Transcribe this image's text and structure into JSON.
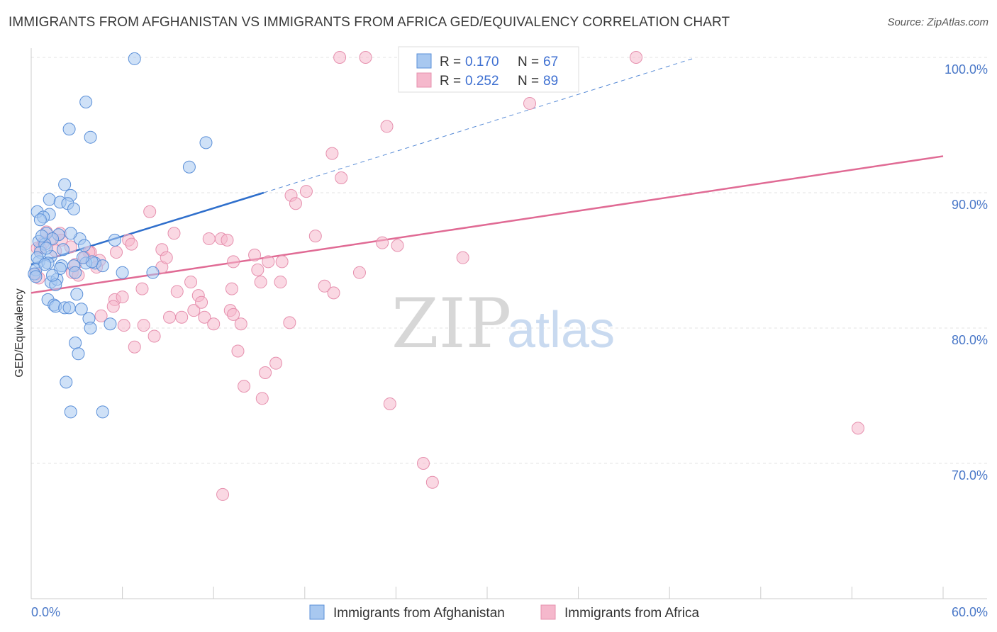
{
  "header": {
    "title": "IMMIGRANTS FROM AFGHANISTAN VS IMMIGRANTS FROM AFRICA GED/EQUIVALENCY CORRELATION CHART",
    "source": "Source: ZipAtlas.com"
  },
  "watermark": {
    "zip": "ZIP",
    "atlas": "atlas"
  },
  "colors": {
    "afghanistan_fill": "#a8c8f0",
    "afghanistan_stroke": "#5a8fd8",
    "afghanistan_line": "#2f6fcc",
    "africa_fill": "#f5b8cc",
    "africa_stroke": "#e690ae",
    "africa_line": "#e06a94",
    "tick_text": "#4a78c8",
    "grid": "#e3e3e3"
  },
  "legend": {
    "r_label": "R =",
    "n_label": "N =",
    "afghanistan": {
      "r": "0.170",
      "n": "67"
    },
    "africa": {
      "r": "0.252",
      "n": "89"
    }
  },
  "chart_data": {
    "type": "scatter",
    "title": "IMMIGRANTS FROM AFGHANISTAN VS IMMIGRANTS FROM AFRICA GED/EQUIVALENCY CORRELATION CHART",
    "xlabel": "",
    "ylabel": "GED/Equivalency",
    "xlim": [
      0,
      60
    ],
    "ylim": [
      60,
      101.5
    ],
    "x_tick_labels": [
      "0.0%",
      "60.0%"
    ],
    "y_ticks": [
      100,
      90,
      80,
      70
    ],
    "y_tick_labels": [
      "100.0%",
      "90.0%",
      "80.0%",
      "70.0%"
    ],
    "grid": true,
    "legend_position": "top-center",
    "series": [
      {
        "name": "Immigrants from Afghanistan",
        "r": 0.17,
        "n": 67,
        "trend": {
          "x": [
            0,
            15.3
          ],
          "y": [
            84.7,
            90.0
          ]
        },
        "trend_extended": {
          "x": [
            15.3,
            43.5
          ],
          "y": [
            90.0,
            99.9
          ]
        },
        "points": [
          [
            6.8,
            99.9
          ],
          [
            3.6,
            96.7
          ],
          [
            2.5,
            94.7
          ],
          [
            3.9,
            94.1
          ],
          [
            11.5,
            93.7
          ],
          [
            10.4,
            91.9
          ],
          [
            2.2,
            90.6
          ],
          [
            1.2,
            89.5
          ],
          [
            2.6,
            89.8
          ],
          [
            1.9,
            89.3
          ],
          [
            2.4,
            89.2
          ],
          [
            2.8,
            88.8
          ],
          [
            0.4,
            88.6
          ],
          [
            1.2,
            88.4
          ],
          [
            0.8,
            88.2
          ],
          [
            0.6,
            88.0
          ],
          [
            1.0,
            87.0
          ],
          [
            1.8,
            86.9
          ],
          [
            0.5,
            86.4
          ],
          [
            1.4,
            86.6
          ],
          [
            3.2,
            86.6
          ],
          [
            5.5,
            86.5
          ],
          [
            0.9,
            86.2
          ],
          [
            3.5,
            86.1
          ],
          [
            0.6,
            85.6
          ],
          [
            1.3,
            85.3
          ],
          [
            0.5,
            84.9
          ],
          [
            1.1,
            84.8
          ],
          [
            2.0,
            84.6
          ],
          [
            2.8,
            84.6
          ],
          [
            4.2,
            84.8
          ],
          [
            4.7,
            84.6
          ],
          [
            3.6,
            84.8
          ],
          [
            0.3,
            84.3
          ],
          [
            2.9,
            84.1
          ],
          [
            6.0,
            84.1
          ],
          [
            8.0,
            84.1
          ],
          [
            1.3,
            83.4
          ],
          [
            1.7,
            83.6
          ],
          [
            1.6,
            83.2
          ],
          [
            3.0,
            82.5
          ],
          [
            1.1,
            82.1
          ],
          [
            1.5,
            81.7
          ],
          [
            1.6,
            81.6
          ],
          [
            2.2,
            81.5
          ],
          [
            2.5,
            81.5
          ],
          [
            3.3,
            81.4
          ],
          [
            3.8,
            80.7
          ],
          [
            5.2,
            80.3
          ],
          [
            3.9,
            80.0
          ],
          [
            2.9,
            78.9
          ],
          [
            3.1,
            78.1
          ],
          [
            2.3,
            76.0
          ],
          [
            2.6,
            73.8
          ],
          [
            4.7,
            73.8
          ],
          [
            0.2,
            84.0
          ],
          [
            0.4,
            85.2
          ],
          [
            0.3,
            83.8
          ],
          [
            1.0,
            85.9
          ],
          [
            0.7,
            86.8
          ],
          [
            2.6,
            87.0
          ],
          [
            4.0,
            84.9
          ],
          [
            1.9,
            84.4
          ],
          [
            0.9,
            84.7
          ],
          [
            3.4,
            85.2
          ],
          [
            2.1,
            85.8
          ],
          [
            1.4,
            83.9
          ]
        ]
      },
      {
        "name": "Immigrants from Africa",
        "r": 0.252,
        "n": 89,
        "trend": {
          "x": [
            0,
            60
          ],
          "y": [
            82.6,
            92.7
          ]
        },
        "points": [
          [
            20.3,
            100.0
          ],
          [
            22.0,
            100.0
          ],
          [
            24.6,
            100.0
          ],
          [
            34.5,
            100.0
          ],
          [
            39.8,
            100.0
          ],
          [
            32.8,
            96.6
          ],
          [
            23.4,
            94.9
          ],
          [
            19.8,
            92.9
          ],
          [
            20.4,
            91.1
          ],
          [
            17.1,
            89.8
          ],
          [
            18.1,
            90.1
          ],
          [
            17.4,
            89.2
          ],
          [
            7.8,
            88.6
          ],
          [
            9.4,
            87.0
          ],
          [
            11.7,
            86.6
          ],
          [
            12.5,
            86.6
          ],
          [
            18.7,
            86.8
          ],
          [
            23.1,
            86.3
          ],
          [
            24.1,
            86.1
          ],
          [
            6.4,
            86.5
          ],
          [
            2.6,
            86.0
          ],
          [
            1.9,
            87.0
          ],
          [
            1.3,
            86.6
          ],
          [
            0.6,
            85.9
          ],
          [
            3.9,
            85.6
          ],
          [
            4.5,
            85.0
          ],
          [
            5.6,
            85.6
          ],
          [
            8.6,
            85.8
          ],
          [
            13.3,
            84.9
          ],
          [
            14.7,
            85.4
          ],
          [
            15.6,
            84.9
          ],
          [
            14.9,
            84.3
          ],
          [
            28.4,
            85.2
          ],
          [
            21.6,
            84.1
          ],
          [
            2.7,
            84.1
          ],
          [
            3.1,
            83.9
          ],
          [
            0.5,
            83.7
          ],
          [
            10.5,
            83.4
          ],
          [
            7.3,
            82.9
          ],
          [
            9.6,
            82.7
          ],
          [
            13.2,
            82.9
          ],
          [
            15.1,
            83.4
          ],
          [
            16.4,
            83.4
          ],
          [
            19.3,
            83.1
          ],
          [
            19.9,
            82.6
          ],
          [
            5.5,
            82.1
          ],
          [
            6.0,
            82.3
          ],
          [
            8.6,
            84.5
          ],
          [
            11.0,
            82.4
          ],
          [
            10.7,
            81.3
          ],
          [
            11.2,
            81.9
          ],
          [
            13.1,
            81.3
          ],
          [
            5.4,
            81.6
          ],
          [
            4.6,
            80.9
          ],
          [
            9.1,
            80.8
          ],
          [
            9.9,
            80.8
          ],
          [
            11.4,
            80.8
          ],
          [
            13.3,
            81.0
          ],
          [
            6.1,
            80.2
          ],
          [
            7.4,
            80.2
          ],
          [
            12.0,
            80.3
          ],
          [
            13.8,
            80.3
          ],
          [
            17.0,
            80.4
          ],
          [
            8.1,
            79.4
          ],
          [
            6.8,
            78.6
          ],
          [
            13.6,
            78.3
          ],
          [
            16.1,
            77.4
          ],
          [
            15.4,
            76.7
          ],
          [
            14.0,
            75.7
          ],
          [
            15.2,
            74.8
          ],
          [
            23.6,
            74.4
          ],
          [
            25.8,
            70.0
          ],
          [
            26.4,
            68.6
          ],
          [
            12.6,
            67.7
          ],
          [
            54.4,
            72.6
          ],
          [
            1.0,
            87.1
          ],
          [
            2.0,
            86.5
          ],
          [
            0.8,
            86.3
          ],
          [
            0.4,
            85.9
          ],
          [
            3.8,
            85.6
          ],
          [
            2.9,
            84.7
          ],
          [
            6.6,
            86.2
          ],
          [
            8.9,
            85.2
          ],
          [
            16.5,
            84.9
          ],
          [
            12.9,
            86.5
          ],
          [
            3.5,
            85.2
          ],
          [
            1.6,
            85.7
          ],
          [
            0.3,
            84.0
          ],
          [
            4.3,
            84.5
          ]
        ]
      }
    ]
  },
  "bottom_legend": {
    "afghanistan": "Immigrants from Afghanistan",
    "africa": "Immigrants from Africa"
  }
}
